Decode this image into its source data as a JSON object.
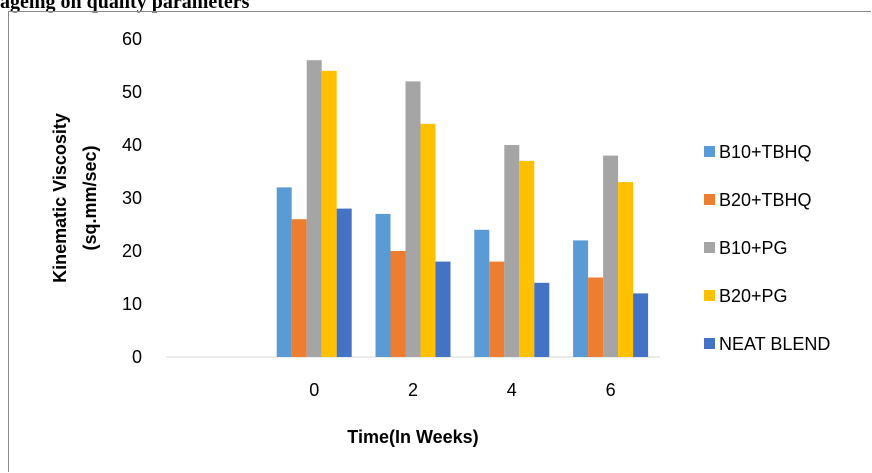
{
  "heading": "ageing on quality parameters",
  "chart_data": {
    "type": "bar",
    "categories": [
      "",
      "0",
      "2",
      "4",
      "6"
    ],
    "series": [
      {
        "name": "B10+TBHQ",
        "color": "#5b9bd5",
        "values": [
          null,
          32,
          27,
          24,
          22
        ]
      },
      {
        "name": "B20+TBHQ",
        "color": "#ed7d31",
        "values": [
          null,
          26,
          20,
          18,
          15
        ]
      },
      {
        "name": "B10+PG",
        "color": "#a5a5a5",
        "values": [
          null,
          56,
          52,
          40,
          38
        ]
      },
      {
        "name": "B20+PG",
        "color": "#ffc000",
        "values": [
          null,
          54,
          44,
          37,
          33
        ]
      },
      {
        "name": "NEAT BLEND",
        "color": "#4472c4",
        "values": [
          null,
          28,
          18,
          14,
          12
        ]
      }
    ],
    "xlabel": "Time(In Weeks)",
    "ylabel_lines": [
      "Kinematic Viscosity",
      "(sq.mm/sec)"
    ],
    "ylim": [
      0,
      60
    ],
    "yticks": [
      0,
      10,
      20,
      30,
      40,
      50,
      60
    ],
    "legend_position": "right",
    "grid": false
  }
}
